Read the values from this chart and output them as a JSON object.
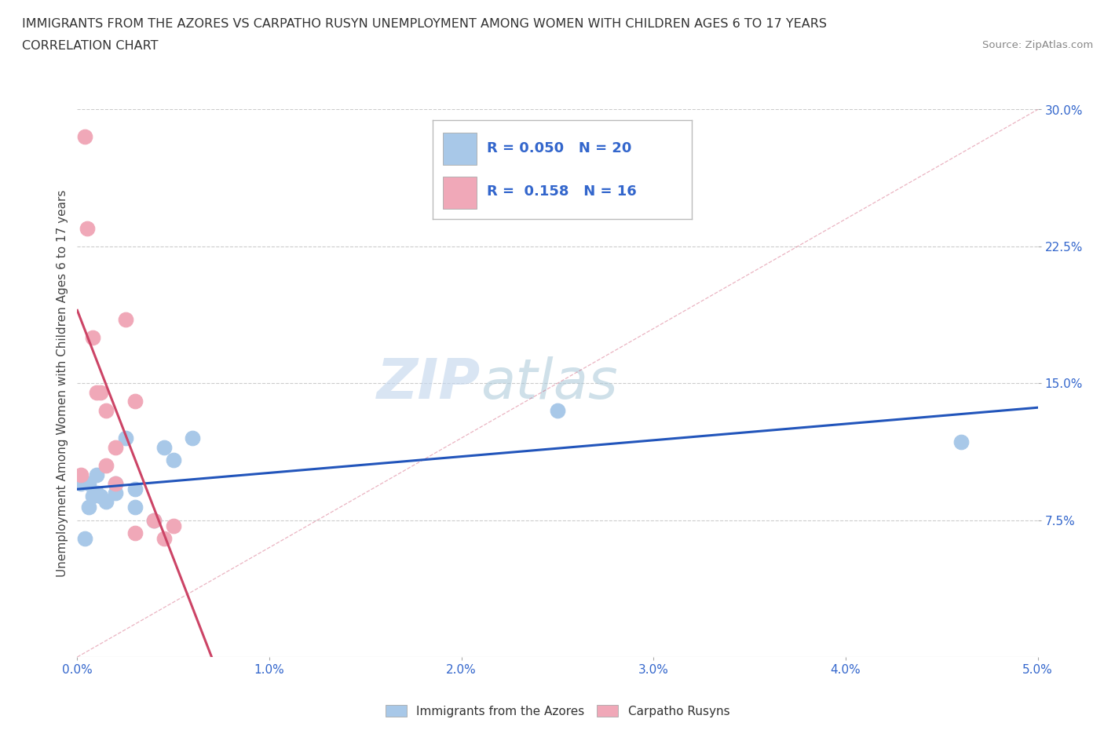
{
  "title_line1": "IMMIGRANTS FROM THE AZORES VS CARPATHO RUSYN UNEMPLOYMENT AMONG WOMEN WITH CHILDREN AGES 6 TO 17 YEARS",
  "title_line2": "CORRELATION CHART",
  "source": "Source: ZipAtlas.com",
  "ylabel": "Unemployment Among Women with Children Ages 6 to 17 years",
  "xlim": [
    0.0,
    0.05
  ],
  "ylim": [
    0.0,
    0.3
  ],
  "xticks": [
    0.0,
    0.01,
    0.02,
    0.03,
    0.04,
    0.05
  ],
  "xtick_labels": [
    "0.0%",
    "1.0%",
    "2.0%",
    "3.0%",
    "4.0%",
    "5.0%"
  ],
  "yticks": [
    0.075,
    0.15,
    0.225,
    0.3
  ],
  "ytick_labels": [
    "7.5%",
    "15.0%",
    "22.5%",
    "30.0%"
  ],
  "legend1_label": "Immigrants from the Azores",
  "legend2_label": "Carpatho Rusyns",
  "R1": 0.05,
  "N1": 20,
  "R2": 0.158,
  "N2": 16,
  "color_blue": "#a8c8e8",
  "color_blue_line": "#2255bb",
  "color_pink": "#f0a8b8",
  "color_pink_line": "#cc4466",
  "color_blue_text": "#3366cc",
  "watermark_zip": "ZIP",
  "watermark_atlas": "atlas",
  "blue_x": [
    0.0002,
    0.0004,
    0.0006,
    0.0006,
    0.0008,
    0.001,
    0.001,
    0.0012,
    0.0015,
    0.002,
    0.002,
    0.0025,
    0.003,
    0.003,
    0.004,
    0.0045,
    0.005,
    0.006,
    0.025,
    0.046
  ],
  "blue_y": [
    0.095,
    0.065,
    0.095,
    0.082,
    0.088,
    0.09,
    0.1,
    0.088,
    0.085,
    0.09,
    0.095,
    0.12,
    0.082,
    0.092,
    0.075,
    0.115,
    0.108,
    0.12,
    0.135,
    0.118
  ],
  "pink_x": [
    0.0002,
    0.0004,
    0.0005,
    0.0008,
    0.001,
    0.0012,
    0.0015,
    0.0015,
    0.002,
    0.002,
    0.0025,
    0.003,
    0.003,
    0.004,
    0.0045,
    0.005
  ],
  "pink_y": [
    0.1,
    0.285,
    0.235,
    0.175,
    0.145,
    0.145,
    0.135,
    0.105,
    0.095,
    0.115,
    0.185,
    0.068,
    0.14,
    0.075,
    0.065,
    0.072
  ],
  "background_color": "#ffffff",
  "grid_color": "#cccccc"
}
